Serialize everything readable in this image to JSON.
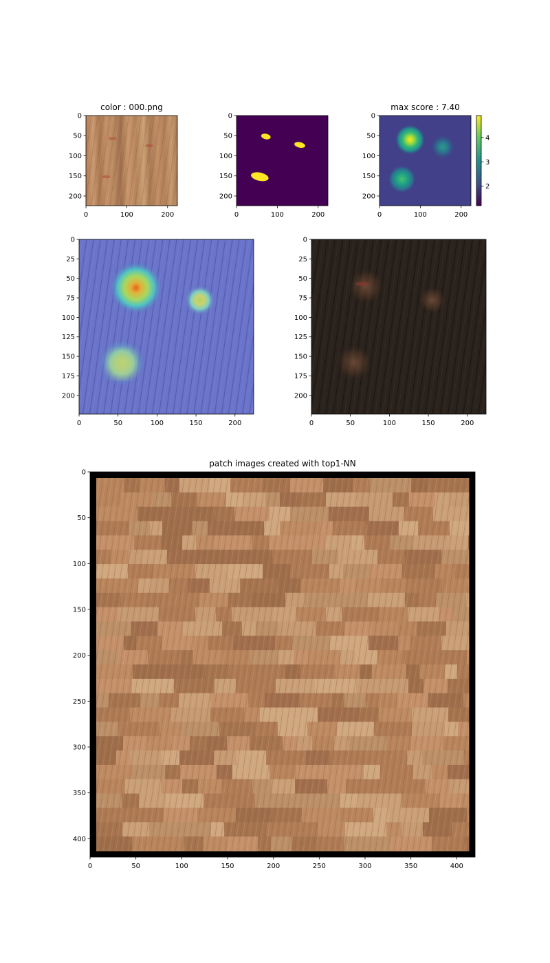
{
  "chart_data": [
    {
      "type": "heatmap",
      "title": "color : 000.png",
      "description_kind": "image-wood-texture",
      "xlim": [
        0,
        224
      ],
      "ylim": [
        224,
        0
      ],
      "xticks": [
        "0",
        "100",
        "200"
      ],
      "yticks": [
        "0",
        "50",
        "100",
        "150",
        "200"
      ],
      "defects": [
        [
          65,
          57
        ],
        [
          155,
          75
        ],
        [
          50,
          152
        ]
      ]
    },
    {
      "type": "heatmap",
      "title": "",
      "description_kind": "binary-mask",
      "xlim": [
        0,
        224
      ],
      "ylim": [
        224,
        0
      ],
      "xticks": [
        "0",
        "100",
        "200"
      ],
      "yticks": [
        "0",
        "50",
        "100",
        "150",
        "200"
      ],
      "blobs": [
        [
          72,
          52
        ],
        [
          155,
          73
        ],
        [
          57,
          152
        ]
      ],
      "colors": {
        "background": "#440154",
        "foreground": "#fde725"
      }
    },
    {
      "type": "heatmap",
      "title": "max score : 7.40",
      "description_kind": "anomaly-score-map",
      "xlim": [
        0,
        224
      ],
      "ylim": [
        224,
        0
      ],
      "xticks": [
        "0",
        "100",
        "200"
      ],
      "yticks": [
        "0",
        "50",
        "100",
        "150",
        "200"
      ],
      "hotspots": [
        [
          75,
          60,
          4.9
        ],
        [
          155,
          78,
          2.9
        ],
        [
          55,
          158,
          3.4
        ]
      ],
      "colorbar": {
        "min": 1.2,
        "max": 4.9,
        "ticks": [
          "2",
          "3",
          "4"
        ],
        "tick_values": [
          2,
          3,
          4
        ]
      }
    },
    {
      "type": "heatmap",
      "title": "",
      "description_kind": "score-overlay",
      "xlim": [
        0,
        224
      ],
      "ylim": [
        224,
        0
      ],
      "xticks": [
        "0",
        "50",
        "100",
        "150",
        "200"
      ],
      "yticks": [
        "0",
        "25",
        "50",
        "75",
        "100",
        "125",
        "150",
        "175",
        "200"
      ]
    },
    {
      "type": "heatmap",
      "title": "",
      "description_kind": "masked-dark-image",
      "xlim": [
        0,
        224
      ],
      "ylim": [
        224,
        0
      ],
      "xticks": [
        "0",
        "50",
        "100",
        "150",
        "200"
      ],
      "yticks": [
        "0",
        "25",
        "50",
        "75",
        "100",
        "125",
        "150",
        "175",
        "200"
      ]
    },
    {
      "type": "heatmap",
      "title": "patch images created with top1-NN",
      "description_kind": "patch-mosaic",
      "xlim": [
        0,
        420
      ],
      "ylim": [
        420,
        0
      ],
      "xticks": [
        "0",
        "50",
        "100",
        "150",
        "200",
        "250",
        "300",
        "350",
        "400"
      ],
      "yticks": [
        "0",
        "50",
        "100",
        "150",
        "200",
        "250",
        "300",
        "350",
        "400"
      ]
    }
  ]
}
